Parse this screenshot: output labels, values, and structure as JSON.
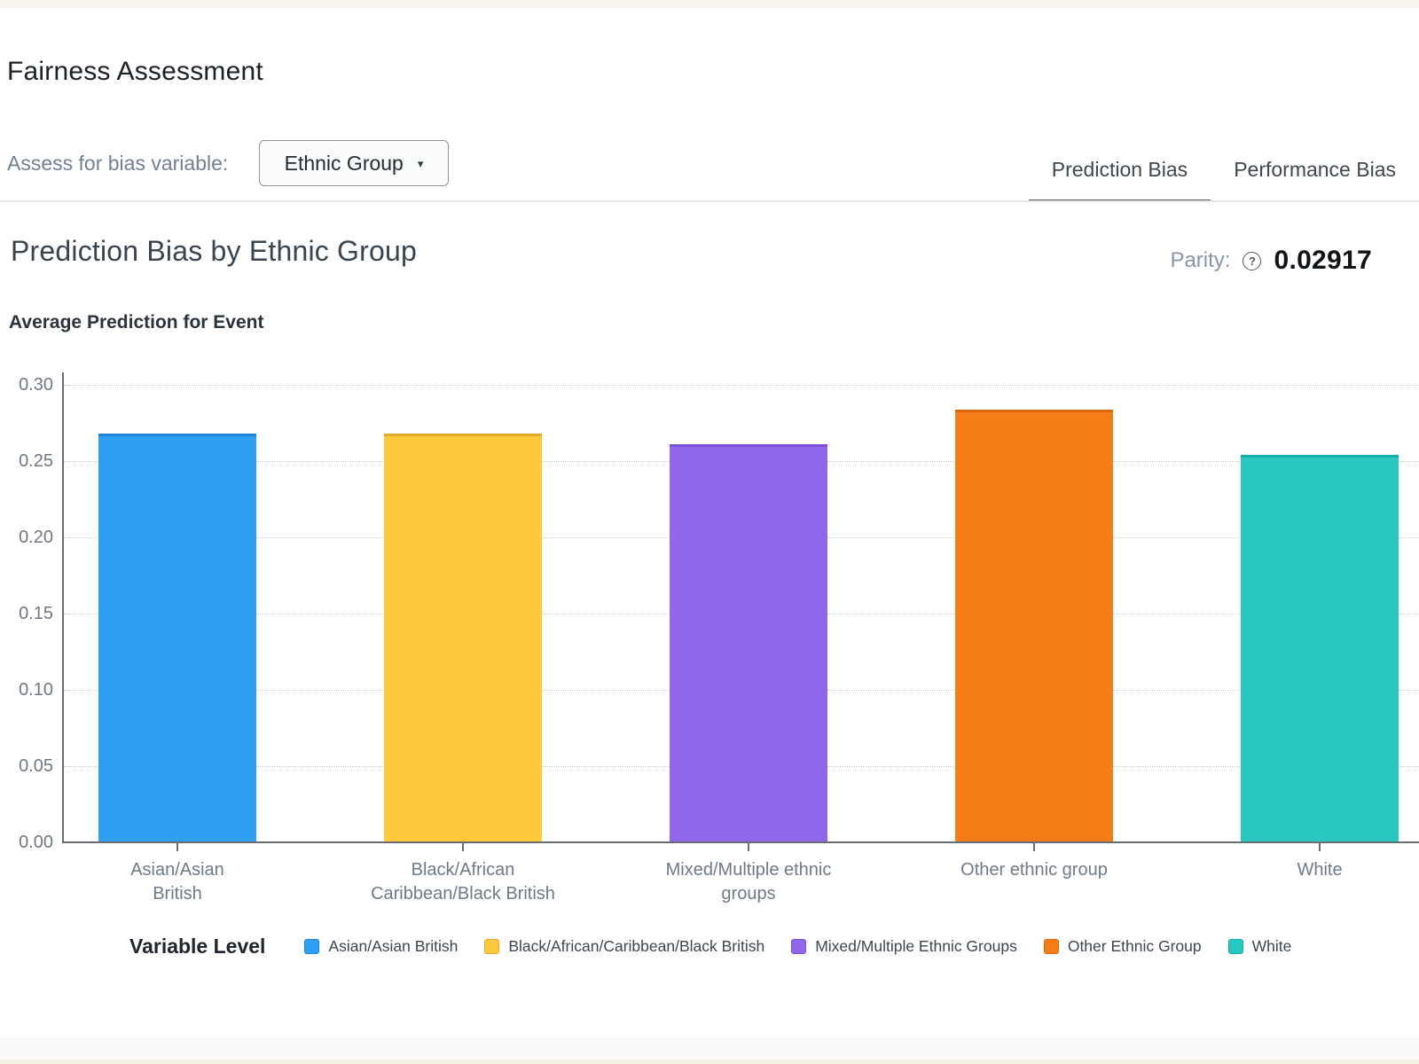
{
  "header": {
    "title": "Fairness Assessment"
  },
  "controls": {
    "bias_variable_label": "Assess for bias variable:",
    "bias_variable_value": "Ethnic Group",
    "dropdown_caret": "▾"
  },
  "tabs": [
    {
      "label": "Prediction Bias",
      "active": true
    },
    {
      "label": "Performance Bias",
      "active": false
    }
  ],
  "section": {
    "title": "Prediction Bias by Ethnic Group",
    "parity_label": "Parity:",
    "parity_help_glyph": "?",
    "parity_value": "0.02917"
  },
  "chart_data": {
    "type": "bar",
    "title": "Average Prediction for Event",
    "categories": [
      "Asian/Asian British",
      "Black/African Caribbean/Black British",
      "Mixed/Multiple ethnic groups",
      "Other ethnic group",
      "White"
    ],
    "tick_label_lines": [
      [
        "Asian/Asian",
        "British"
      ],
      [
        "Black/African",
        "Caribbean/Black British"
      ],
      [
        "Mixed/Multiple ethnic",
        "groups"
      ],
      [
        "Other ethnic group"
      ],
      [
        "White"
      ]
    ],
    "values": [
      0.268,
      0.268,
      0.261,
      0.284,
      0.254
    ],
    "colors": [
      "#2E9FF2",
      "#FFC93E",
      "#9167E9",
      "#F57D18",
      "#2AC7C1"
    ],
    "edge_colors": [
      "#1C84D9",
      "#E5A62C",
      "#7950D6",
      "#DC660D",
      "#17ABA6"
    ],
    "xlabel": "",
    "ylabel": "",
    "ylim": [
      0,
      0.3
    ],
    "yticks": [
      0.3,
      0.25,
      0.2,
      0.15,
      0.1,
      0.05,
      0.0
    ],
    "ytick_labels": [
      "0.30",
      "0.25",
      "0.20",
      "0.15",
      "0.10",
      "0.05",
      "0.00"
    ],
    "grid": "horizontal-dotted",
    "legend_position": "bottom"
  },
  "legend": {
    "title": "Variable Level",
    "items": [
      {
        "label": "Asian/Asian British",
        "color": "#2E9FF2",
        "edge": "#1C84D9"
      },
      {
        "label": "Black/African/Caribbean/Black British",
        "color": "#FFC93E",
        "edge": "#E5A62C"
      },
      {
        "label": "Mixed/Multiple Ethnic Groups",
        "color": "#9167E9",
        "edge": "#7950D6"
      },
      {
        "label": "Other Ethnic Group",
        "color": "#F57D18",
        "edge": "#DC660D"
      },
      {
        "label": "White",
        "color": "#2AC7C1",
        "edge": "#17ABA6"
      }
    ]
  }
}
